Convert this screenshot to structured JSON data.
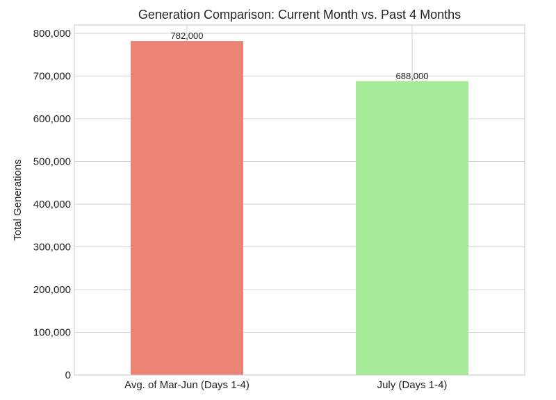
{
  "chart_data": {
    "type": "bar",
    "title": "Generation Comparison: Current Month vs. Past 4 Months",
    "xlabel": "",
    "ylabel": "Total Generations",
    "categories": [
      "Avg. of Mar-Jun (Days 1-4)",
      "July (Days 1-4)"
    ],
    "values": [
      782000,
      688000
    ],
    "data_labels": [
      "782,000",
      "688,000"
    ],
    "colors": [
      "#ea8575",
      "#a6eb98"
    ],
    "ylim": [
      0,
      800000
    ],
    "yticks": [
      0,
      100000,
      200000,
      300000,
      400000,
      500000,
      600000,
      700000,
      800000
    ],
    "ytick_labels": [
      "0",
      "100,000",
      "200,000",
      "300,000",
      "400,000",
      "500,000",
      "600,000",
      "700,000",
      "800,000"
    ],
    "grid": true,
    "legend": "none"
  }
}
